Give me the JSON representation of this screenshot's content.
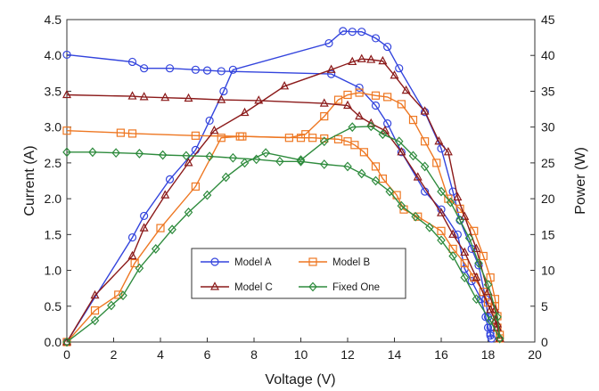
{
  "chart_data": {
    "type": "line",
    "xlabel": "Voltage (V)",
    "ylabel_left": "Current (A)",
    "ylabel_right": "Power (W)",
    "xlim": [
      0,
      20
    ],
    "ylim_left": [
      0,
      4.5
    ],
    "ylim_right": [
      0,
      45
    ],
    "xticks": [
      "0",
      "2",
      "4",
      "6",
      "8",
      "10",
      "12",
      "14",
      "16",
      "18",
      "20"
    ],
    "yticks_left": [
      "0.0",
      "0.5",
      "1.0",
      "1.5",
      "2.0",
      "2.5",
      "3.0",
      "3.5",
      "4.0",
      "4.5"
    ],
    "yticks_right": [
      "0",
      "5",
      "10",
      "15",
      "20",
      "25",
      "30",
      "35",
      "40",
      "45"
    ],
    "grid": false,
    "legend_position": "bottom-center",
    "series": [
      {
        "name": "Model A",
        "color": "#3344dd",
        "marker": "circle",
        "iv": [
          [
            0,
            4.01
          ],
          [
            2.8,
            3.91
          ],
          [
            3.3,
            3.82
          ],
          [
            4.4,
            3.82
          ],
          [
            5.5,
            3.8
          ],
          [
            6.0,
            3.79
          ],
          [
            6.6,
            3.78
          ],
          [
            11.3,
            3.74
          ],
          [
            12.5,
            3.55
          ],
          [
            13.2,
            3.3
          ],
          [
            13.7,
            3.05
          ],
          [
            14.3,
            2.65
          ],
          [
            15.3,
            2.1
          ],
          [
            16.0,
            1.85
          ],
          [
            16.7,
            1.5
          ],
          [
            17.0,
            1.02
          ],
          [
            17.3,
            0.85
          ],
          [
            17.7,
            0.6
          ],
          [
            17.9,
            0.35
          ],
          [
            18.0,
            0.2
          ],
          [
            18.1,
            0.12
          ],
          [
            18.15,
            0.05
          ]
        ],
        "pv": [
          [
            0,
            0
          ],
          [
            2.8,
            14.6
          ],
          [
            3.3,
            17.6
          ],
          [
            4.4,
            22.7
          ],
          [
            5.5,
            26.8
          ],
          [
            6.1,
            30.9
          ],
          [
            6.7,
            35.0
          ],
          [
            7.1,
            38.0
          ],
          [
            11.2,
            41.7
          ],
          [
            11.8,
            43.4
          ],
          [
            12.2,
            43.3
          ],
          [
            12.6,
            43.3
          ],
          [
            13.2,
            42.4
          ],
          [
            13.7,
            41.2
          ],
          [
            14.2,
            38.2
          ],
          [
            15.3,
            32.1
          ],
          [
            16.0,
            27.0
          ],
          [
            16.5,
            21.0
          ],
          [
            16.8,
            17.0
          ],
          [
            17.3,
            13.0
          ],
          [
            17.6,
            10.7
          ],
          [
            17.9,
            6.0
          ],
          [
            18.0,
            3.5
          ],
          [
            18.1,
            2.0
          ],
          [
            18.1,
            0.9
          ]
        ]
      },
      {
        "name": "Model B",
        "color": "#ee7722",
        "marker": "square",
        "iv": [
          [
            0,
            2.95
          ],
          [
            2.3,
            2.92
          ],
          [
            2.8,
            2.91
          ],
          [
            5.5,
            2.88
          ],
          [
            7.4,
            2.87
          ],
          [
            10.0,
            2.85
          ],
          [
            10.5,
            2.85
          ],
          [
            11.0,
            2.84
          ],
          [
            11.6,
            2.83
          ],
          [
            12.0,
            2.8
          ],
          [
            12.3,
            2.75
          ],
          [
            12.7,
            2.65
          ],
          [
            13.2,
            2.45
          ],
          [
            13.5,
            2.28
          ],
          [
            14.1,
            2.05
          ],
          [
            14.4,
            1.85
          ],
          [
            15.0,
            1.75
          ],
          [
            16.0,
            1.55
          ],
          [
            16.5,
            1.3
          ],
          [
            17.0,
            1.1
          ],
          [
            17.4,
            0.9
          ],
          [
            17.8,
            0.7
          ],
          [
            18.0,
            0.55
          ],
          [
            18.3,
            0.5
          ],
          [
            18.4,
            0.2
          ],
          [
            18.5,
            0.05
          ]
        ],
        "pv": [
          [
            0,
            0
          ],
          [
            1.2,
            4.4
          ],
          [
            2.2,
            6.6
          ],
          [
            2.9,
            11.0
          ],
          [
            4.0,
            15.9
          ],
          [
            5.5,
            21.7
          ],
          [
            6.6,
            28.5
          ],
          [
            7.5,
            28.7
          ],
          [
            9.5,
            28.5
          ],
          [
            10.2,
            29.0
          ],
          [
            11.0,
            31.5
          ],
          [
            11.6,
            33.8
          ],
          [
            12.0,
            34.5
          ],
          [
            12.5,
            34.8
          ],
          [
            13.2,
            34.4
          ],
          [
            13.7,
            34.2
          ],
          [
            14.3,
            33.2
          ],
          [
            14.8,
            31.0
          ],
          [
            15.3,
            28.0
          ],
          [
            15.8,
            25.0
          ],
          [
            16.3,
            20.0
          ],
          [
            16.8,
            18.6
          ],
          [
            17.4,
            15.5
          ],
          [
            17.8,
            12.0
          ],
          [
            18.1,
            9.0
          ],
          [
            18.3,
            6.0
          ],
          [
            18.4,
            3.6
          ],
          [
            18.5,
            1.0
          ]
        ]
      },
      {
        "name": "Model C",
        "color": "#8b1a1a",
        "marker": "triangle",
        "iv": [
          [
            0,
            3.45
          ],
          [
            2.8,
            3.43
          ],
          [
            3.3,
            3.42
          ],
          [
            4.2,
            3.41
          ],
          [
            5.2,
            3.4
          ],
          [
            6.6,
            3.38
          ],
          [
            8.2,
            3.37
          ],
          [
            11.0,
            3.33
          ],
          [
            12.0,
            3.3
          ],
          [
            12.5,
            3.15
          ],
          [
            13.0,
            3.05
          ],
          [
            13.6,
            2.95
          ],
          [
            14.3,
            2.65
          ],
          [
            15.0,
            2.3
          ],
          [
            16.0,
            1.8
          ],
          [
            16.5,
            1.5
          ],
          [
            17.0,
            1.25
          ],
          [
            17.5,
            0.9
          ],
          [
            18.1,
            0.45
          ],
          [
            18.3,
            0.3
          ],
          [
            18.4,
            0.2
          ],
          [
            18.5,
            0.05
          ]
        ],
        "pv": [
          [
            0,
            0
          ],
          [
            1.2,
            6.5
          ],
          [
            2.8,
            12.0
          ],
          [
            3.3,
            15.9
          ],
          [
            4.2,
            20.5
          ],
          [
            5.2,
            25.0
          ],
          [
            6.3,
            29.5
          ],
          [
            7.6,
            32.0
          ],
          [
            9.3,
            35.7
          ],
          [
            11.3,
            38.0
          ],
          [
            12.2,
            39.1
          ],
          [
            12.6,
            39.5
          ],
          [
            13.0,
            39.4
          ],
          [
            13.5,
            39.2
          ],
          [
            14.0,
            37.2
          ],
          [
            14.5,
            35.1
          ],
          [
            15.3,
            32.2
          ],
          [
            15.9,
            28.0
          ],
          [
            16.3,
            26.5
          ],
          [
            16.7,
            20.2
          ],
          [
            17.0,
            17.5
          ],
          [
            17.5,
            13.0
          ],
          [
            18.0,
            7.0
          ],
          [
            18.3,
            4.5
          ],
          [
            18.4,
            2.5
          ],
          [
            18.5,
            0.5
          ]
        ]
      },
      {
        "name": "Fixed One",
        "color": "#2e8b3d",
        "marker": "diamond",
        "iv": [
          [
            0,
            2.65
          ],
          [
            1.1,
            2.65
          ],
          [
            2.1,
            2.64
          ],
          [
            3.1,
            2.63
          ],
          [
            4.1,
            2.61
          ],
          [
            5.1,
            2.6
          ],
          [
            6.1,
            2.59
          ],
          [
            7.1,
            2.57
          ],
          [
            8.1,
            2.55
          ],
          [
            9.1,
            2.52
          ],
          [
            10.0,
            2.52
          ],
          [
            11.0,
            2.48
          ],
          [
            12.0,
            2.45
          ],
          [
            12.6,
            2.35
          ],
          [
            13.2,
            2.25
          ],
          [
            13.8,
            2.1
          ],
          [
            14.3,
            1.9
          ],
          [
            14.9,
            1.75
          ],
          [
            15.5,
            1.6
          ],
          [
            16.0,
            1.42
          ],
          [
            16.5,
            1.2
          ],
          [
            17.0,
            0.9
          ],
          [
            17.5,
            0.6
          ],
          [
            18.1,
            0.3
          ],
          [
            18.5,
            0.05
          ]
        ],
        "pv": [
          [
            0,
            0
          ],
          [
            1.2,
            3.0
          ],
          [
            1.9,
            5.1
          ],
          [
            2.4,
            6.5
          ],
          [
            3.1,
            10.3
          ],
          [
            3.8,
            13.0
          ],
          [
            4.5,
            15.7
          ],
          [
            5.2,
            18.1
          ],
          [
            6.0,
            20.5
          ],
          [
            6.8,
            23.0
          ],
          [
            7.6,
            25.0
          ],
          [
            8.5,
            26.4
          ],
          [
            10.0,
            25.4
          ],
          [
            11.0,
            28.0
          ],
          [
            12.2,
            30.0
          ],
          [
            13.0,
            30.1
          ],
          [
            13.5,
            29.0
          ],
          [
            14.2,
            28.0
          ],
          [
            14.8,
            26.0
          ],
          [
            15.3,
            24.5
          ],
          [
            16.0,
            21.0
          ],
          [
            16.4,
            19.5
          ],
          [
            16.8,
            17.0
          ],
          [
            17.2,
            14.5
          ],
          [
            17.6,
            11.0
          ],
          [
            18.0,
            8.0
          ],
          [
            18.4,
            3.5
          ],
          [
            18.5,
            0.5
          ]
        ]
      }
    ]
  }
}
